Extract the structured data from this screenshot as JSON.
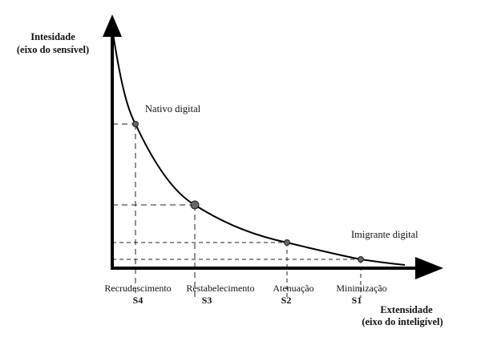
{
  "y_axis": {
    "title_line1": "Intesidade",
    "title_line2": "(eixo do sensível)"
  },
  "x_axis": {
    "title_line1": "Extensidade",
    "title_line2": "(eixo do inteligível)"
  },
  "curve_labels": {
    "top": "Nativo digital",
    "bottom": "Imigrante digital"
  },
  "points": [
    {
      "name": "Recrudescimento",
      "code": "S4"
    },
    {
      "name": "Restabelecimento",
      "code": "S3"
    },
    {
      "name": "Atenuação",
      "code": "S2"
    },
    {
      "name": "Minimização",
      "code": "S1"
    }
  ],
  "colors": {
    "line": "#000000",
    "point_fill": "#666666",
    "background": "#ffffff"
  }
}
